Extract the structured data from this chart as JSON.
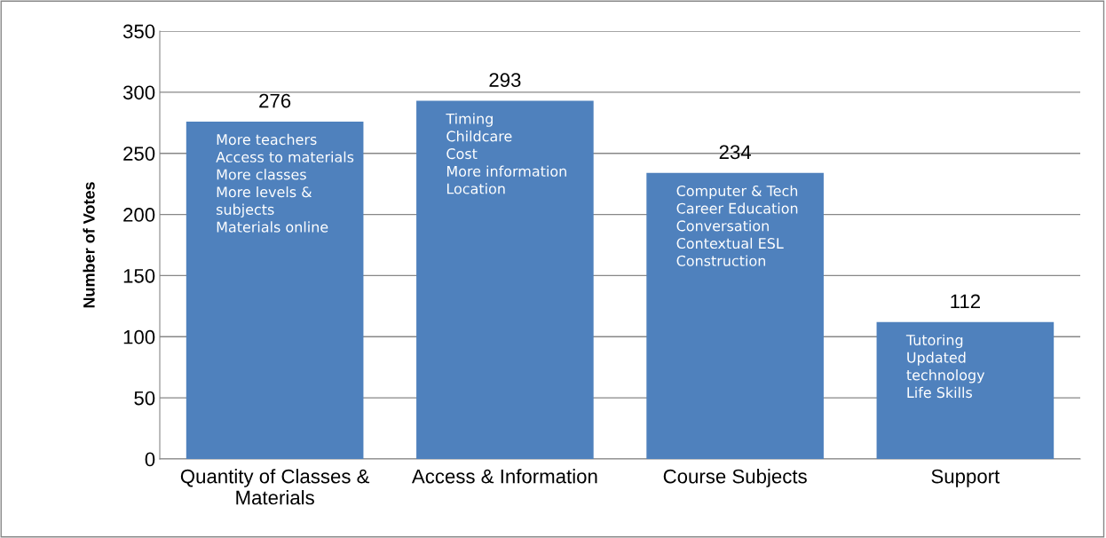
{
  "chart_data": {
    "type": "bar",
    "categories": [
      "Quantity of Classes &\nMaterials",
      "Access & Information",
      "Course Subjects",
      "Support"
    ],
    "values": [
      276,
      293,
      234,
      112
    ],
    "color": "#4f81bd",
    "ylabel": "Number of Votes",
    "ylim": [
      0,
      350
    ],
    "yticks": [
      0,
      50,
      100,
      150,
      200,
      250,
      300,
      350
    ],
    "grid": "y",
    "data_labels": true,
    "annotations": [
      "More teachers\nAccess to materials\nMore classes\nMore levels &\nsubjects\nMaterials online",
      "Timing\nChildcare\nCost\nMore information\nLocation",
      "Computer & Tech\nCareer Education\nConversation\nContextual ESL\nConstruction",
      "Tutoring\nUpdated\ntechnology\nLife Skills"
    ]
  }
}
